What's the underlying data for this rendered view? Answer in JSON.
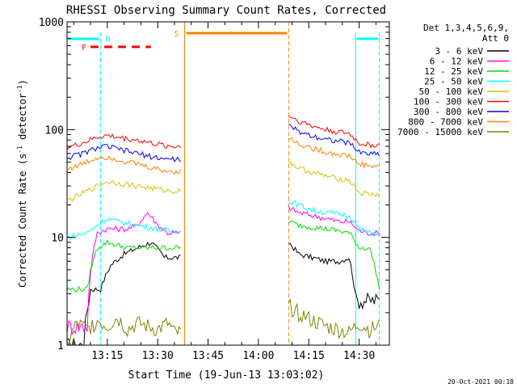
{
  "chart_data": {
    "type": "line",
    "title": "RHESSI Observing Summary Count Rates, Corrected",
    "xlabel": "Start Time (19-Jun-13 13:03:02)",
    "ylabel_main": "Corrected Count Rate (s",
    "ylabel_sup1": "-1",
    "ylabel_mid": " detector",
    "ylabel_sup2": "-1",
    "ylabel_end": ")",
    "yscale": "log",
    "xlim": [
      "13:03",
      "14:39"
    ],
    "ylim": [
      1,
      1000
    ],
    "x_ticks": [
      "13:15",
      "13:30",
      "13:45",
      "14:00",
      "14:15",
      "14:30"
    ],
    "y_ticks": [
      "1",
      "10",
      "100",
      "1000"
    ],
    "footer": "20-Oct-2021 00:18",
    "legend": {
      "header1": "Det 1,3,4,5,6,9,",
      "header2": "Att 0",
      "placement": "right",
      "entries": [
        {
          "label": "3 - 6 keV",
          "color": "#000000"
        },
        {
          "label": "6 - 12 keV",
          "color": "#ff00ff"
        },
        {
          "label": "12 - 25 keV",
          "color": "#00dd00"
        },
        {
          "label": "25 - 50 keV",
          "color": "#00ffff"
        },
        {
          "label": "50 - 100 keV",
          "color": "#d4c000"
        },
        {
          "label": "100 - 300 keV",
          "color": "#ff0000"
        },
        {
          "label": "300 - 800 keV",
          "color": "#0000ff"
        },
        {
          "label": "800 - 7000 keV",
          "color": "#ff8000"
        },
        {
          "label": "7000 - 15000 keV",
          "color": "#808000"
        }
      ]
    },
    "annotations": [
      {
        "label": "N",
        "color": "#00ffff"
      },
      {
        "label": "F",
        "color": "#ff0000"
      },
      {
        "label": "S",
        "color": "#ff8000"
      }
    ],
    "data_gap": [
      "13:38",
      "14:09"
    ],
    "series": [
      {
        "name": "3 - 6 keV",
        "color": "#000000",
        "x": [
          "13:03",
          "13:06",
          "13:08",
          "13:10",
          "13:13",
          "13:16",
          "13:20",
          "13:24",
          "13:28",
          "13:32",
          "13:35",
          "14:09",
          "14:12",
          "14:16",
          "14:20",
          "14:24",
          "14:27",
          "14:29",
          "14:33",
          "14:36"
        ],
        "y": [
          1.0,
          1.0,
          1.0,
          3.3,
          3.3,
          5.5,
          7.0,
          8.0,
          9.0,
          6.5,
          6.5,
          9.0,
          7.0,
          6.5,
          6.0,
          6.0,
          6.5,
          2.6,
          2.6,
          2.6
        ]
      },
      {
        "name": "6 - 12 keV",
        "color": "#ff00ff",
        "x": [
          "13:03",
          "13:06",
          "13:09",
          "13:12",
          "13:15",
          "13:18",
          "13:21",
          "13:24",
          "13:27",
          "13:30",
          "13:33",
          "13:35",
          "14:09",
          "14:12",
          "14:16",
          "14:20",
          "14:24",
          "14:27",
          "14:30",
          "14:33",
          "14:36"
        ],
        "y": [
          1.5,
          1.5,
          1.5,
          11.0,
          12.0,
          12.0,
          12.0,
          13.0,
          17.0,
          13.0,
          11.0,
          11.0,
          19.0,
          17.0,
          16.0,
          15.0,
          14.0,
          14.0,
          11.5,
          11.0,
          11.0
        ]
      },
      {
        "name": "12 - 25 keV",
        "color": "#00dd00",
        "x": [
          "13:03",
          "13:06",
          "13:09",
          "13:12",
          "13:15",
          "13:18",
          "13:21",
          "13:24",
          "13:27",
          "13:30",
          "13:33",
          "13:35",
          "14:09",
          "14:12",
          "14:16",
          "14:20",
          "14:24",
          "14:27",
          "14:30",
          "14:33",
          "14:36"
        ],
        "y": [
          3.3,
          3.3,
          3.3,
          8.0,
          9.0,
          8.5,
          8.0,
          8.0,
          8.0,
          8.0,
          8.0,
          8.0,
          14.0,
          13.0,
          12.5,
          12.0,
          11.5,
          11.0,
          8.0,
          8.0,
          3.3
        ]
      },
      {
        "name": "25 - 50 keV",
        "color": "#00ffff",
        "x": [
          "13:03",
          "13:06",
          "13:09",
          "13:12",
          "13:15",
          "13:18",
          "13:21",
          "13:24",
          "13:27",
          "13:30",
          "13:33",
          "13:35",
          "14:09",
          "14:12",
          "14:16",
          "14:20",
          "14:24",
          "14:27",
          "14:30",
          "14:33",
          "14:36"
        ],
        "y": [
          10.0,
          10.5,
          11.0,
          13.0,
          15.0,
          14.0,
          13.5,
          13.0,
          12.5,
          12.0,
          11.5,
          11.5,
          22.0,
          20.0,
          18.0,
          17.0,
          16.5,
          16.0,
          12.0,
          11.0,
          11.0
        ]
      },
      {
        "name": "50 - 100 keV",
        "color": "#d4c000",
        "x": [
          "13:03",
          "13:06",
          "13:09",
          "13:12",
          "13:15",
          "13:18",
          "13:21",
          "13:24",
          "13:27",
          "13:30",
          "13:33",
          "13:35",
          "14:09",
          "14:12",
          "14:16",
          "14:20",
          "14:24",
          "14:27",
          "14:30",
          "14:33",
          "14:36"
        ],
        "y": [
          22.0,
          24.0,
          27.0,
          30.0,
          33.0,
          32.0,
          31.0,
          30.0,
          29.0,
          28.0,
          27.0,
          27.0,
          50.0,
          44.0,
          40.0,
          37.0,
          35.0,
          34.0,
          26.0,
          25.0,
          25.0
        ]
      },
      {
        "name": "100 - 300 keV",
        "color": "#ff0000",
        "x": [
          "13:03",
          "13:06",
          "13:09",
          "13:12",
          "13:15",
          "13:18",
          "13:21",
          "13:24",
          "13:27",
          "13:30",
          "13:33",
          "13:35",
          "14:09",
          "14:12",
          "14:16",
          "14:20",
          "14:24",
          "14:27",
          "14:30",
          "14:33",
          "14:36"
        ],
        "y": [
          68.0,
          72.0,
          78.0,
          85.0,
          88.0,
          85.0,
          82.0,
          80.0,
          76.0,
          73.0,
          70.0,
          70.0,
          135.0,
          120.0,
          108.0,
          100.0,
          95.0,
          92.0,
          75.0,
          72.0,
          72.0
        ]
      },
      {
        "name": "300 - 800 keV",
        "color": "#0000ff",
        "x": [
          "13:03",
          "13:06",
          "13:09",
          "13:12",
          "13:15",
          "13:18",
          "13:21",
          "13:24",
          "13:27",
          "13:30",
          "13:33",
          "13:35",
          "14:09",
          "14:12",
          "14:16",
          "14:20",
          "14:24",
          "14:27",
          "14:30",
          "14:33",
          "14:36"
        ],
        "y": [
          55.0,
          58.0,
          62.0,
          68.0,
          70.0,
          66.0,
          63.0,
          60.0,
          57.0,
          55.0,
          53.0,
          53.0,
          108.0,
          96.0,
          88.0,
          82.0,
          78.0,
          75.0,
          62.0,
          60.0,
          60.0
        ]
      },
      {
        "name": "800 - 7000 keV",
        "color": "#ff8000",
        "x": [
          "13:03",
          "13:06",
          "13:09",
          "13:12",
          "13:15",
          "13:18",
          "13:21",
          "13:24",
          "13:27",
          "13:30",
          "13:33",
          "13:35",
          "14:09",
          "14:12",
          "14:16",
          "14:20",
          "14:24",
          "14:27",
          "14:30",
          "14:33",
          "14:36"
        ],
        "y": [
          43.0,
          46.0,
          50.0,
          55.0,
          56.0,
          53.0,
          50.0,
          48.0,
          45.0,
          43.0,
          41.0,
          41.0,
          84.0,
          74.0,
          67.0,
          62.0,
          59.0,
          57.0,
          48.0,
          46.0,
          46.0
        ]
      },
      {
        "name": "7000 - 15000 keV",
        "color": "#808000",
        "x": [
          "13:03",
          "13:06",
          "13:09",
          "13:12",
          "13:15",
          "13:18",
          "13:21",
          "13:24",
          "13:27",
          "13:30",
          "13:33",
          "13:35",
          "14:09",
          "14:12",
          "14:16",
          "14:20",
          "14:24",
          "14:27",
          "14:30",
          "14:33",
          "14:36"
        ],
        "y": [
          1.0,
          1.6,
          1.4,
          1.7,
          1.5,
          1.8,
          1.4,
          1.6,
          1.5,
          1.4,
          1.6,
          1.3,
          2.3,
          2.0,
          1.7,
          1.5,
          1.4,
          1.3,
          1.6,
          1.4,
          1.5
        ]
      }
    ]
  }
}
